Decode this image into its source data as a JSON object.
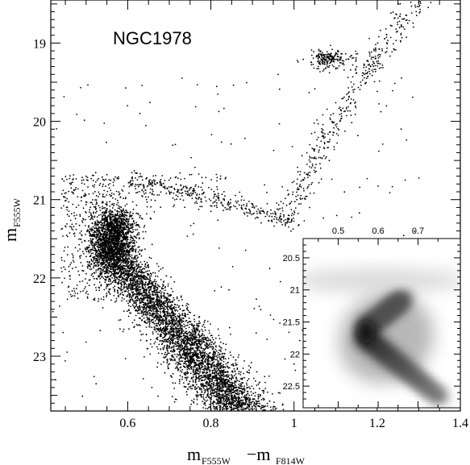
{
  "chart_data": [
    {
      "type": "scatter",
      "title": "NGC1978",
      "xlabel_main": "m",
      "xlabel_sub1": "F555W",
      "xlabel_minus": "−m",
      "xlabel_sub2": "F814W",
      "ylabel_main": "m",
      "ylabel_sub": "F555W",
      "xlim": [
        0.415,
        1.4
      ],
      "ylim": [
        23.7,
        18.45
      ],
      "y_inverted": true,
      "xticks": [
        0.6,
        0.8,
        1,
        1.2,
        1.4
      ],
      "xtick_labels": [
        "0.6",
        "0.8",
        "1",
        "1.2",
        "1.4"
      ],
      "yticks": [
        19,
        20,
        21,
        22,
        23
      ],
      "ytick_labels": [
        "19",
        "20",
        "21",
        "22",
        "23"
      ],
      "point_color": "#000000",
      "features": [
        {
          "name": "main sequence",
          "x_range": [
            0.48,
            1.0
          ],
          "y_range": [
            21.1,
            23.7
          ]
        },
        {
          "name": "turn-off",
          "x": 0.57,
          "y": 21.6
        },
        {
          "name": "subgiant branch",
          "x_range": [
            0.6,
            1.0
          ],
          "y_range": [
            20.7,
            21.4
          ]
        },
        {
          "name": "red giant branch",
          "x_range": [
            0.98,
            1.3
          ],
          "y_range": [
            18.45,
            21.3
          ]
        },
        {
          "name": "red clump",
          "x": 1.08,
          "y": 19.2
        }
      ],
      "grid": false,
      "legend": "none"
    },
    {
      "type": "heatmap",
      "xlim": [
        0.42,
        0.8
      ],
      "ylim": [
        22.8,
        20.25
      ],
      "y_inverted": true,
      "xticks": [
        0.5,
        0.6,
        0.7
      ],
      "xtick_labels": [
        "0.5",
        "0.6",
        "0.7"
      ],
      "yticks": [
        20.5,
        21,
        21.5,
        22,
        22.5
      ],
      "ytick_labels": [
        "20.5",
        "21",
        "21.5",
        "22",
        "22.5"
      ],
      "colormap": "grayscale",
      "peak": {
        "x": 0.57,
        "y": 21.65
      }
    }
  ]
}
